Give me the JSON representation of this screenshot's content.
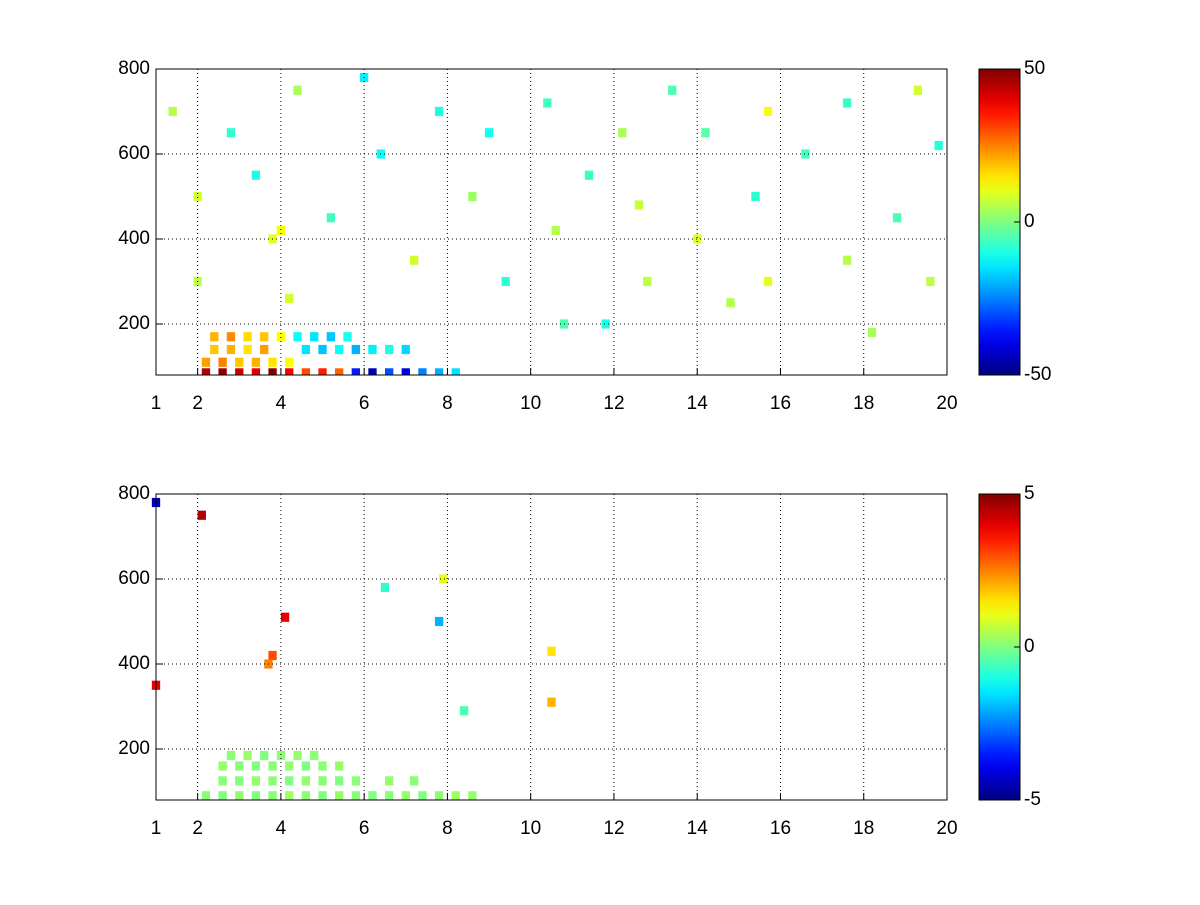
{
  "chart_data": [
    {
      "type": "heatmap",
      "colormap": "jet",
      "grid": true,
      "xlim": [
        1,
        20
      ],
      "xticks": [
        1,
        2,
        4,
        6,
        8,
        10,
        12,
        14,
        16,
        18,
        20
      ],
      "ylim": [
        80,
        800
      ],
      "yticks": [
        200,
        400,
        600,
        800
      ],
      "clim": [
        -50,
        50
      ],
      "cticks": [
        -50,
        0,
        50
      ],
      "x": [
        2.2,
        2.6,
        3.0,
        3.4,
        3.8,
        4.2,
        4.6,
        5.0,
        5.4,
        5.8,
        6.2,
        6.6,
        7.0,
        7.4,
        7.8,
        8.2,
        2.2,
        2.6,
        3.0,
        3.4,
        3.8,
        4.2,
        2.4,
        2.8,
        3.2,
        3.6,
        4.6,
        5.0,
        5.4,
        5.8,
        6.2,
        6.6,
        7.0,
        2.4,
        2.8,
        3.2,
        3.6,
        4.0,
        4.4,
        4.8,
        5.2,
        5.6,
        3.8,
        4.0,
        1.4,
        2.0,
        2.0,
        2.8,
        3.4,
        4.4,
        4.2,
        5.2,
        6.0,
        6.4,
        7.2,
        7.8,
        8.6,
        9.4,
        10.4,
        10.6,
        11.4,
        11.8,
        12.2,
        12.8,
        13.4,
        14.0,
        14.2,
        14.8,
        15.4,
        15.7,
        15.7,
        16.6,
        17.6,
        17.6,
        18.8,
        19.3,
        19.6,
        19.8,
        12.6,
        9.0,
        10.8,
        18.2
      ],
      "y": [
        85,
        85,
        85,
        85,
        85,
        85,
        85,
        85,
        85,
        85,
        85,
        85,
        85,
        85,
        85,
        85,
        110,
        110,
        110,
        110,
        110,
        110,
        140,
        140,
        140,
        140,
        140,
        140,
        140,
        140,
        140,
        140,
        140,
        170,
        170,
        170,
        170,
        170,
        170,
        170,
        170,
        170,
        400,
        420,
        700,
        500,
        300,
        650,
        550,
        750,
        260,
        450,
        780,
        600,
        350,
        700,
        500,
        300,
        720,
        420,
        550,
        200,
        650,
        300,
        750,
        400,
        650,
        250,
        500,
        700,
        300,
        600,
        350,
        720,
        450,
        750,
        300,
        620,
        480,
        650,
        200,
        180
      ],
      "values": [
        45,
        48,
        42,
        40,
        50,
        38,
        30,
        35,
        28,
        -35,
        -45,
        -30,
        -40,
        -25,
        -20,
        -15,
        22,
        25,
        18,
        20,
        15,
        12,
        18,
        20,
        15,
        22,
        -15,
        -18,
        -12,
        -20,
        -14,
        -10,
        -16,
        20,
        24,
        16,
        18,
        12,
        -12,
        -15,
        -18,
        -10,
        10,
        12,
        5,
        8,
        6,
        -8,
        -10,
        4,
        8,
        -6,
        -14,
        -12,
        8,
        -10,
        3,
        -8,
        -6,
        5,
        -7,
        -10,
        4,
        6,
        -5,
        10,
        -4,
        5,
        -8,
        12,
        10,
        -6,
        5,
        -7,
        -5,
        8,
        6,
        -9,
        7,
        -11,
        -5,
        4
      ]
    },
    {
      "type": "heatmap",
      "colormap": "jet",
      "grid": true,
      "xlim": [
        1,
        20
      ],
      "xticks": [
        1,
        2,
        4,
        6,
        8,
        10,
        12,
        14,
        16,
        18,
        20
      ],
      "ylim": [
        80,
        800
      ],
      "yticks": [
        200,
        400,
        600,
        800
      ],
      "clim": [
        -5,
        5
      ],
      "cticks": [
        -5,
        0,
        5
      ],
      "x": [
        2.2,
        2.6,
        3.0,
        3.4,
        3.8,
        4.2,
        4.6,
        5.0,
        5.4,
        5.8,
        6.2,
        6.6,
        7.0,
        7.4,
        7.8,
        8.2,
        8.6,
        2.6,
        3.0,
        3.4,
        3.8,
        4.2,
        4.6,
        5.0,
        5.4,
        5.8,
        6.6,
        7.2,
        2.6,
        3.0,
        3.4,
        3.8,
        4.2,
        4.6,
        5.0,
        5.4,
        2.8,
        3.2,
        3.6,
        4.0,
        4.4,
        4.8,
        3.8,
        3.7,
        4.1,
        2.1,
        1.0,
        1.0,
        7.9,
        7.8,
        10.5,
        10.5,
        8.4,
        6.5
      ],
      "y": [
        90,
        90,
        90,
        90,
        90,
        90,
        90,
        90,
        90,
        90,
        90,
        90,
        90,
        90,
        90,
        90,
        90,
        125,
        125,
        125,
        125,
        125,
        125,
        125,
        125,
        125,
        125,
        125,
        160,
        160,
        160,
        160,
        160,
        160,
        160,
        160,
        185,
        185,
        185,
        185,
        185,
        185,
        420,
        400,
        510,
        750,
        780,
        350,
        600,
        500,
        430,
        310,
        290,
        580
      ],
      "values": [
        0.1,
        0,
        0.2,
        0,
        0.1,
        0.3,
        0.1,
        0,
        0.2,
        0.1,
        0,
        0.1,
        0.2,
        0,
        0.1,
        0.3,
        0.2,
        0.1,
        0,
        0.2,
        0.1,
        0,
        0.2,
        0.1,
        0,
        0.1,
        0.2,
        0.1,
        0.2,
        0.1,
        0,
        0.1,
        0.2,
        0,
        0.1,
        0.2,
        0.1,
        0.2,
        0,
        0.1,
        0.2,
        0.1,
        3,
        2.5,
        4,
        4.5,
        -4.5,
        4,
        1,
        -2,
        1.5,
        2,
        -0.5,
        -0.8
      ]
    }
  ]
}
